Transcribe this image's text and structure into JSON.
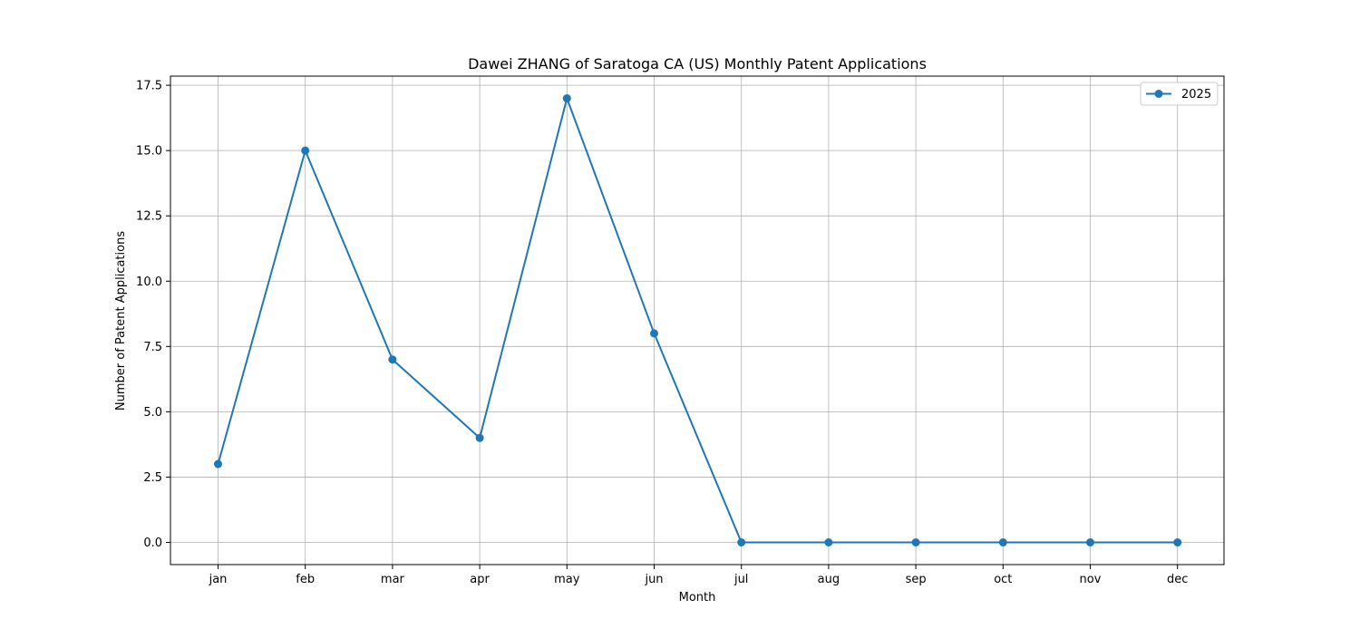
{
  "chart_data": {
    "type": "line",
    "title": "Dawei ZHANG of Saratoga CA (US) Monthly Patent Applications",
    "xlabel": "Month",
    "ylabel": "Number of Patent Applications",
    "categories": [
      "jan",
      "feb",
      "mar",
      "apr",
      "may",
      "jun",
      "jul",
      "aug",
      "sep",
      "oct",
      "nov",
      "dec"
    ],
    "series": [
      {
        "name": "2025",
        "color": "#1f77b4",
        "marker": "circle",
        "values": [
          3,
          15,
          7,
          4,
          17,
          8,
          0,
          0,
          0,
          0,
          0,
          0
        ]
      }
    ],
    "ylim": [
      -0.85,
      17.85
    ],
    "yticks": [
      0.0,
      2.5,
      5.0,
      7.5,
      10.0,
      12.5,
      15.0,
      17.5
    ],
    "ytick_labels": [
      "0.0",
      "2.5",
      "5.0",
      "7.5",
      "10.0",
      "12.5",
      "15.0",
      "17.5"
    ],
    "grid": true,
    "legend_position": "top-right"
  }
}
